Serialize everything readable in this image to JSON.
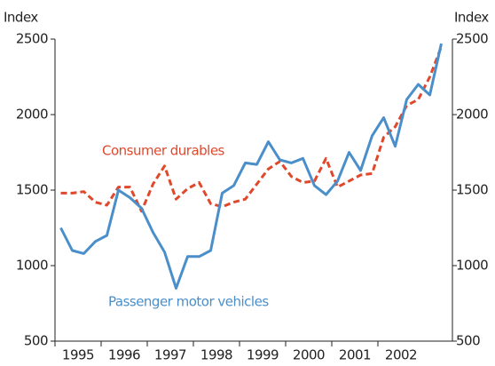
{
  "chart_data": {
    "type": "line",
    "y_label": "Index",
    "y2_label": "Index",
    "categories": [
      "1995",
      null,
      null,
      null,
      "1996",
      null,
      null,
      null,
      "1997",
      null,
      null,
      null,
      "1998",
      null,
      null,
      null,
      "1999",
      null,
      null,
      null,
      "2000",
      null,
      null,
      null,
      "2001",
      null,
      null,
      null,
      "2002",
      null,
      null,
      null,
      null,
      null
    ],
    "series": [
      {
        "name": "Consumer durables",
        "color": "#e0482c",
        "dashed": true,
        "values": [
          1480,
          1480,
          1490,
          1420,
          1400,
          1520,
          1520,
          1360,
          1540,
          1660,
          1440,
          1510,
          1550,
          1410,
          1390,
          1420,
          1440,
          1540,
          1640,
          1690,
          1590,
          1550,
          1560,
          1710,
          1520,
          1560,
          1600,
          1610,
          1850,
          1920,
          2060,
          2100,
          2250,
          2450
        ]
      },
      {
        "name": "Passenger motor vehicles",
        "color": "#4a8fc9",
        "dashed": false,
        "values": [
          1250,
          1100,
          1080,
          1160,
          1200,
          1500,
          1450,
          1380,
          1220,
          1090,
          850,
          1060,
          1060,
          1100,
          1480,
          1530,
          1680,
          1670,
          1820,
          1700,
          1680,
          1710,
          1530,
          1470,
          1560,
          1750,
          1630,
          1860,
          1980,
          1790,
          2100,
          2200,
          2130,
          2470
        ]
      }
    ],
    "ylim": [
      500,
      2500
    ],
    "yticks": [
      500,
      1000,
      1500,
      2000,
      2500
    ],
    "y2lim": [
      500,
      2500
    ],
    "y2ticks": [
      500,
      1000,
      1500,
      2000,
      2500
    ]
  }
}
